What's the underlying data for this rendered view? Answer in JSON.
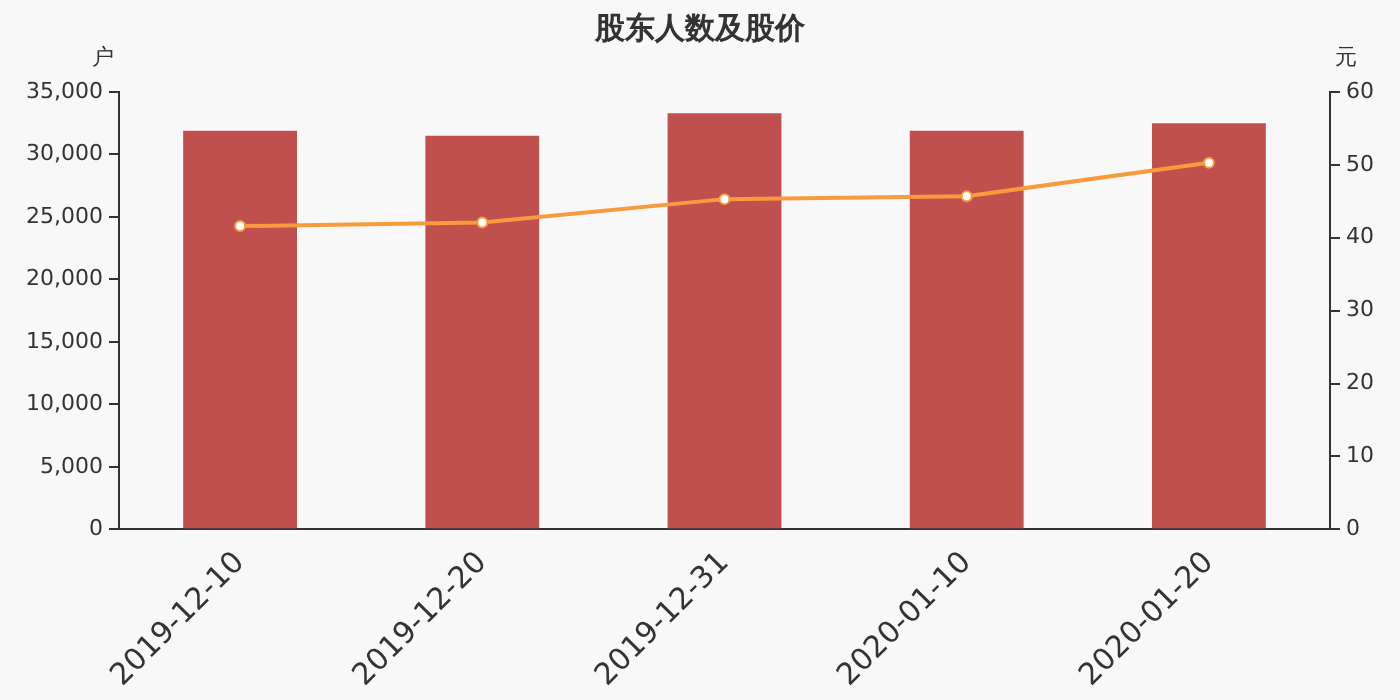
{
  "chart_data": {
    "type": "bar",
    "title": "股东人数及股价",
    "ylabel": "户",
    "y2label": "元",
    "categories": [
      "2019-12-10",
      "2019-12-20",
      "2019-12-31",
      "2020-01-10",
      "2020-01-20"
    ],
    "series": [
      {
        "color": "#c0504d",
        "values": [
          31900,
          31500,
          33300,
          31900,
          32500
        ]
      },
      {
        "type": "line",
        "axis": "y2",
        "color": "#f79b3c",
        "marker": "circle",
        "values": [
          41.6,
          42.1,
          45.3,
          45.7,
          50.3
        ]
      }
    ],
    "ylim": [
      0,
      35000
    ],
    "yticks": [
      0,
      {
        "value": 5000,
        "label": "5,000"
      },
      {
        "value": 10000,
        "label": "10,000"
      },
      {
        "value": 15000,
        "label": "15,000"
      },
      {
        "value": 20000,
        "label": "20,000"
      },
      {
        "value": 25000,
        "label": "25,000"
      },
      {
        "value": 30000,
        "label": "30,000"
      },
      {
        "value": 35000,
        "label": "35,000"
      }
    ],
    "y2lim": [
      0,
      60
    ],
    "y2ticks": [
      0,
      10,
      20,
      30,
      40,
      50,
      60
    ],
    "grid": false,
    "legend": false
  }
}
